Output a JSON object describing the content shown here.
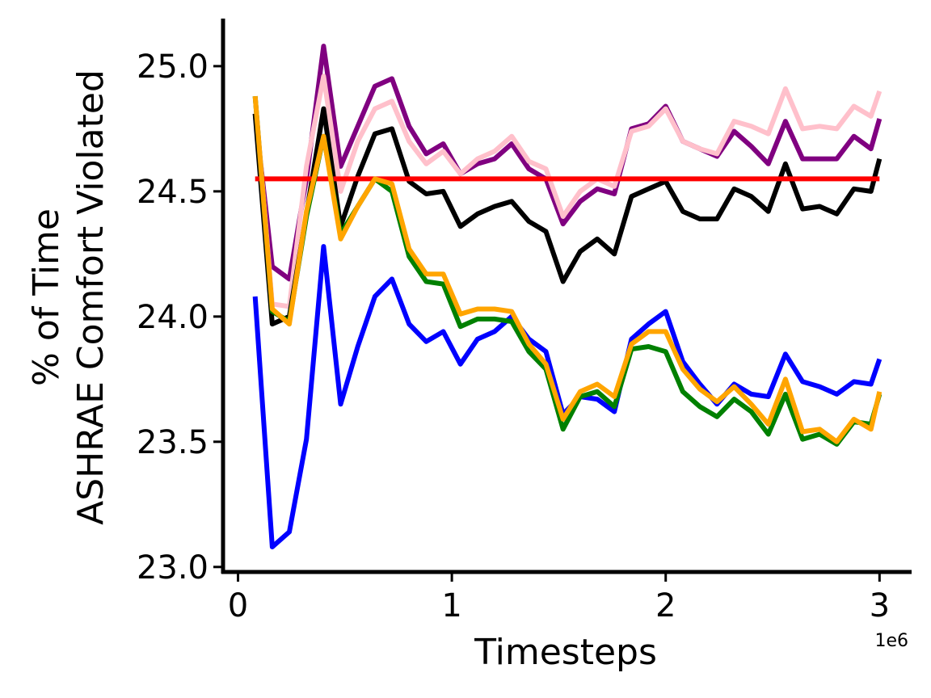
{
  "chart_data": {
    "type": "line",
    "title": "",
    "xlabel": "Timesteps",
    "ylabel_lines": [
      "% of Time",
      "ASHRAE Comfort Violated"
    ],
    "x_exponent_label": "1e6",
    "xlim": [
      -0.07,
      3.15
    ],
    "ylim": [
      22.98,
      25.19
    ],
    "x_ticks": [
      0,
      1,
      2,
      3
    ],
    "x_tick_labels": [
      "0",
      "1",
      "2",
      "3"
    ],
    "y_ticks": [
      23.0,
      23.5,
      24.0,
      24.5,
      25.0
    ],
    "y_tick_labels": [
      "23.0",
      "23.5",
      "24.0",
      "24.5",
      "25.0"
    ],
    "grid": false,
    "legend": "none",
    "x": [
      0.08,
      0.16,
      0.24,
      0.32,
      0.4,
      0.48,
      0.56,
      0.64,
      0.72,
      0.8,
      0.88,
      0.96,
      1.04,
      1.12,
      1.2,
      1.28,
      1.36,
      1.44,
      1.52,
      1.6,
      1.68,
      1.76,
      1.84,
      1.92,
      2.0,
      2.08,
      2.16,
      2.24,
      2.32,
      2.4,
      2.48,
      2.56,
      2.64,
      2.72,
      2.8,
      2.88,
      2.96,
      3.0
    ],
    "series": [
      {
        "color": "#800080",
        "width": 6,
        "values": [
          24.81,
          24.2,
          24.15,
          24.55,
          25.08,
          24.6,
          24.76,
          24.92,
          24.95,
          24.76,
          24.65,
          24.69,
          24.57,
          24.61,
          24.63,
          24.69,
          24.59,
          24.55,
          24.37,
          24.46,
          24.51,
          24.49,
          24.75,
          24.77,
          24.84,
          24.7,
          24.67,
          24.64,
          24.74,
          24.68,
          24.61,
          24.78,
          24.63,
          24.63,
          24.63,
          24.72,
          24.67,
          24.79
        ]
      },
      {
        "color": "#ffc0cb",
        "width": 6,
        "values": [
          24.88,
          24.05,
          24.04,
          24.6,
          24.96,
          24.5,
          24.7,
          24.83,
          24.86,
          24.7,
          24.61,
          24.66,
          24.57,
          24.63,
          24.66,
          24.72,
          24.62,
          24.59,
          24.4,
          24.5,
          24.55,
          24.52,
          24.74,
          24.76,
          24.83,
          24.7,
          24.67,
          24.65,
          24.78,
          24.76,
          24.73,
          24.91,
          24.75,
          24.76,
          24.75,
          24.84,
          24.8,
          24.9
        ]
      },
      {
        "color": "#000000",
        "width": 6,
        "values": [
          24.81,
          23.97,
          24.0,
          24.41,
          24.83,
          24.36,
          24.56,
          24.73,
          24.75,
          24.54,
          24.49,
          24.5,
          24.36,
          24.41,
          24.44,
          24.46,
          24.38,
          24.34,
          24.14,
          24.26,
          24.31,
          24.25,
          24.48,
          24.51,
          24.54,
          24.42,
          24.39,
          24.39,
          24.51,
          24.48,
          24.42,
          24.61,
          24.43,
          24.44,
          24.41,
          24.51,
          24.5,
          24.63
        ]
      },
      {
        "color": "#ff0000",
        "width": 6,
        "values": [
          24.55,
          24.55,
          24.55,
          24.55,
          24.55,
          24.55,
          24.55,
          24.55,
          24.55,
          24.55,
          24.55,
          24.55,
          24.55,
          24.55,
          24.55,
          24.55,
          24.55,
          24.55,
          24.55,
          24.55,
          24.55,
          24.55,
          24.55,
          24.55,
          24.55,
          24.55,
          24.55,
          24.55,
          24.55,
          24.55,
          24.55,
          24.55,
          24.55,
          24.55,
          24.55,
          24.55,
          24.55,
          24.55
        ]
      },
      {
        "color": "#0000ff",
        "width": 6,
        "values": [
          24.08,
          23.08,
          23.14,
          23.51,
          24.28,
          23.65,
          23.88,
          24.08,
          24.15,
          23.97,
          23.9,
          23.94,
          23.81,
          23.91,
          23.94,
          24.0,
          23.91,
          23.86,
          23.61,
          23.68,
          23.67,
          23.62,
          23.91,
          23.97,
          24.02,
          23.82,
          23.73,
          23.65,
          23.73,
          23.69,
          23.68,
          23.85,
          23.74,
          23.72,
          23.69,
          23.74,
          23.73,
          23.83
        ]
      },
      {
        "color": "#008000",
        "width": 6,
        "values": [
          24.88,
          24.02,
          23.98,
          24.4,
          24.72,
          24.33,
          24.44,
          24.55,
          24.5,
          24.24,
          24.14,
          24.13,
          23.96,
          23.99,
          23.99,
          23.98,
          23.86,
          23.79,
          23.55,
          23.68,
          23.7,
          23.64,
          23.87,
          23.88,
          23.86,
          23.7,
          23.64,
          23.6,
          23.67,
          23.62,
          23.53,
          23.69,
          23.51,
          23.53,
          23.49,
          23.58,
          23.57,
          23.69
        ]
      },
      {
        "color": "#ffa500",
        "width": 6,
        "values": [
          24.88,
          24.03,
          23.97,
          24.42,
          24.72,
          24.31,
          24.44,
          24.55,
          24.53,
          24.27,
          24.17,
          24.17,
          24.01,
          24.03,
          24.03,
          24.02,
          23.89,
          23.81,
          23.59,
          23.7,
          23.73,
          23.68,
          23.89,
          23.94,
          23.94,
          23.79,
          23.71,
          23.66,
          23.72,
          23.65,
          23.57,
          23.75,
          23.54,
          23.55,
          23.5,
          23.59,
          23.55,
          23.7
        ]
      }
    ]
  }
}
